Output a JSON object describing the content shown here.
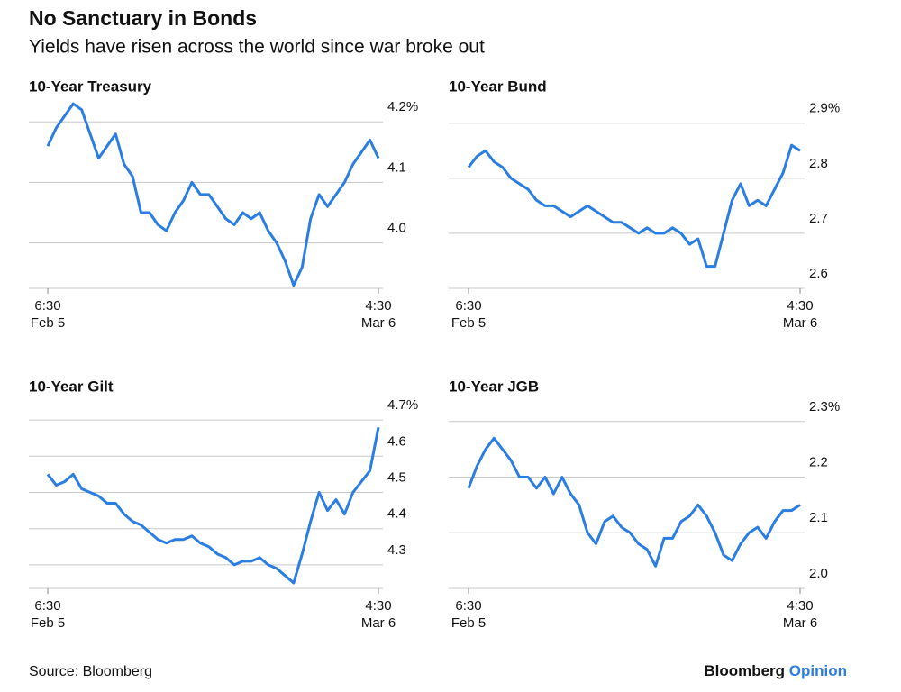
{
  "title": "No Sanctuary in Bonds",
  "subtitle": "Yields have risen across the world since war broke out",
  "source": "Source: Bloomberg",
  "brand": "Bloomberg",
  "brand_suffix": "Opinion",
  "chart_data": [
    {
      "type": "line",
      "title": "10-Year Treasury",
      "color": "#2a7de1",
      "grid": true,
      "categories": [
        "6:30\nFeb 5",
        null,
        null,
        null,
        null,
        null,
        null,
        null,
        null,
        null,
        null,
        null,
        null,
        null,
        null,
        null,
        null,
        null,
        null,
        null,
        null,
        null,
        null,
        null,
        null,
        null,
        null,
        null,
        null,
        null,
        null,
        null,
        null,
        null,
        null,
        null,
        null,
        null,
        null,
        "4:30\nMar 6"
      ],
      "values": [
        4.16,
        4.19,
        4.21,
        4.23,
        4.22,
        4.18,
        4.14,
        4.16,
        4.18,
        4.13,
        4.11,
        4.05,
        4.05,
        4.03,
        4.02,
        4.05,
        4.07,
        4.1,
        4.08,
        4.08,
        4.06,
        4.04,
        4.03,
        4.05,
        4.04,
        4.05,
        4.02,
        4.0,
        3.97,
        3.93,
        3.96,
        4.04,
        4.08,
        4.06,
        4.08,
        4.1,
        4.13,
        4.15,
        4.17,
        4.14
      ],
      "ylim": [
        3.925,
        4.245
      ],
      "yticks": [
        {
          "value": 4,
          "label": "4.0"
        },
        4.1,
        {
          "value": 4.2,
          "label": "4.2%"
        }
      ]
    },
    {
      "type": "line",
      "title": "10-Year Bund",
      "color": "#2a7de1",
      "grid": true,
      "categories": [
        "6:30\nFeb 5",
        null,
        null,
        null,
        null,
        null,
        null,
        null,
        null,
        null,
        null,
        null,
        null,
        null,
        null,
        null,
        null,
        null,
        null,
        null,
        null,
        null,
        null,
        null,
        null,
        null,
        null,
        null,
        null,
        null,
        null,
        null,
        null,
        null,
        null,
        null,
        null,
        null,
        null,
        "4:30\nMar 6"
      ],
      "values": [
        2.82,
        2.84,
        2.85,
        2.83,
        2.82,
        2.8,
        2.79,
        2.78,
        2.76,
        2.75,
        2.75,
        2.74,
        2.73,
        2.74,
        2.75,
        2.74,
        2.73,
        2.72,
        2.72,
        2.71,
        2.7,
        2.71,
        2.7,
        2.7,
        2.71,
        2.7,
        2.68,
        2.69,
        2.64,
        2.64,
        2.7,
        2.76,
        2.79,
        2.75,
        2.76,
        2.75,
        2.78,
        2.81,
        2.86,
        2.85
      ],
      "ylim": [
        2.6,
        2.952
      ],
      "yticks": [
        2.6,
        2.7,
        2.8,
        {
          "value": 2.9,
          "label": "2.9%"
        }
      ]
    },
    {
      "type": "line",
      "title": "10-Year Gilt",
      "color": "#2a7de1",
      "grid": true,
      "categories": [
        "6:30\nFeb 5",
        null,
        null,
        null,
        null,
        null,
        null,
        null,
        null,
        null,
        null,
        null,
        null,
        null,
        null,
        null,
        null,
        null,
        null,
        null,
        null,
        null,
        null,
        null,
        null,
        null,
        null,
        null,
        null,
        null,
        null,
        null,
        null,
        null,
        null,
        null,
        null,
        null,
        null,
        "4:30\nMar 6"
      ],
      "values": [
        4.55,
        4.52,
        4.53,
        4.55,
        4.51,
        4.5,
        4.49,
        4.47,
        4.47,
        4.44,
        4.42,
        4.41,
        4.39,
        4.37,
        4.36,
        4.37,
        4.37,
        4.38,
        4.36,
        4.35,
        4.33,
        4.32,
        4.3,
        4.31,
        4.31,
        4.32,
        4.3,
        4.29,
        4.27,
        4.25,
        4.33,
        4.42,
        4.5,
        4.45,
        4.48,
        4.44,
        4.5,
        4.53,
        4.56,
        4.68
      ],
      "ylim": [
        4.235,
        4.765
      ],
      "yticks": [
        4.3,
        4.4,
        4.5,
        4.6,
        {
          "value": 4.7,
          "label": "4.7%"
        }
      ]
    },
    {
      "type": "line",
      "title": "10-Year JGB",
      "color": "#2a7de1",
      "grid": true,
      "categories": [
        "6:30\nFeb 5",
        null,
        null,
        null,
        null,
        null,
        null,
        null,
        null,
        null,
        null,
        null,
        null,
        null,
        null,
        null,
        null,
        null,
        null,
        null,
        null,
        null,
        null,
        null,
        null,
        null,
        null,
        null,
        null,
        null,
        null,
        null,
        null,
        null,
        null,
        null,
        null,
        null,
        null,
        "4:30\nMar 6"
      ],
      "values": [
        2.18,
        2.22,
        2.25,
        2.27,
        2.25,
        2.23,
        2.2,
        2.2,
        2.18,
        2.2,
        2.17,
        2.2,
        2.17,
        2.15,
        2.1,
        2.08,
        2.12,
        2.13,
        2.11,
        2.1,
        2.08,
        2.07,
        2.04,
        2.09,
        2.09,
        2.12,
        2.13,
        2.15,
        2.13,
        2.1,
        2.06,
        2.05,
        2.08,
        2.1,
        2.11,
        2.09,
        2.12,
        2.14,
        2.14,
        2.15
      ],
      "ylim": [
        2.0,
        2.345
      ],
      "yticks": [
        {
          "value": 2,
          "label": "2.0"
        },
        2.1,
        2.2,
        {
          "value": 2.3,
          "label": "2.3%"
        }
      ]
    }
  ]
}
